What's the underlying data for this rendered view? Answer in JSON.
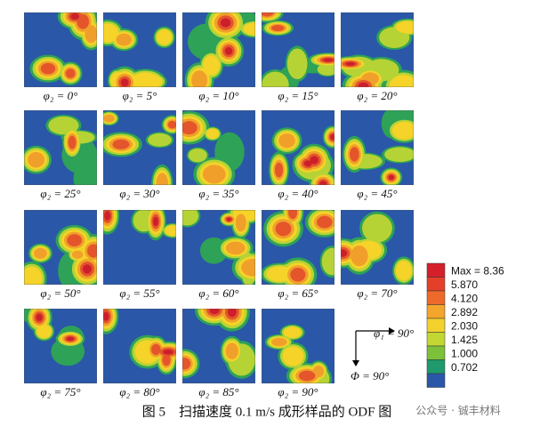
{
  "panels": [
    "φ₂ = 0°",
    "φ₂ = 5°",
    "φ₂ = 10°",
    "φ₂ = 15°",
    "φ₂ = 20°",
    "φ₂ = 25°",
    "φ₂ = 30°",
    "φ₂ = 35°",
    "φ₂ = 40°",
    "φ₂ = 45°",
    "φ₂ = 50°",
    "φ₂ = 55°",
    "φ₂ = 60°",
    "φ₂ = 65°",
    "φ₂ = 70°",
    "φ₂ = 75°",
    "φ₂ = 80°",
    "φ₂ = 85°",
    "φ₂ = 90°"
  ],
  "legend": [
    "Max = 8.36",
    "5.870",
    "4.120",
    "2.892",
    "2.030",
    "1.425",
    "1.000",
    "0.702"
  ],
  "axes": {
    "x": "φ₁ = 90°",
    "y": "Φ = 90°"
  },
  "caption": "图 5　扫描速度 0.1 m/s 成形样品的 ODF 图",
  "watermark": "公众号 · 铖丰材料"
}
